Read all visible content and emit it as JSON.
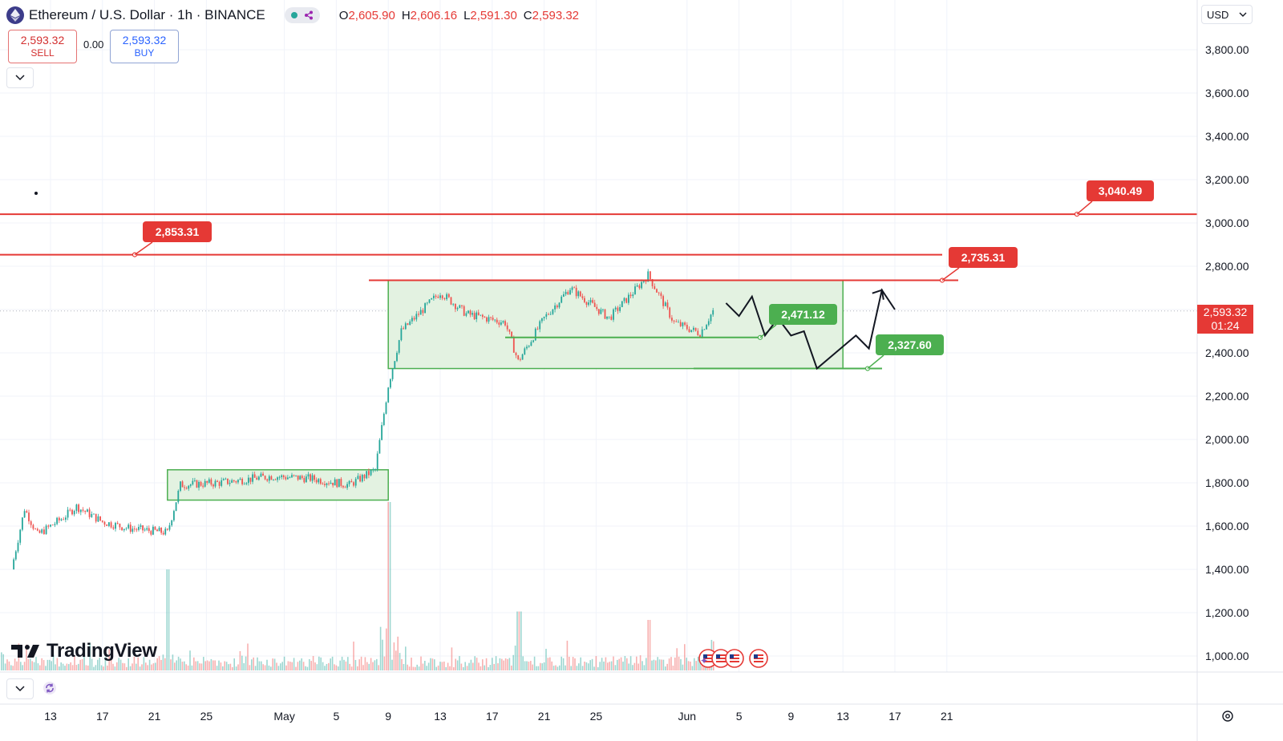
{
  "header": {
    "symbol_title": "Ethereum / U.S. Dollar · 1h · BINANCE",
    "ohlc": [
      {
        "k": "O",
        "v": "2,605.90"
      },
      {
        "k": "H",
        "v": "2,606.16"
      },
      {
        "k": "L",
        "v": "2,591.30"
      },
      {
        "k": "C",
        "v": "2,593.32"
      }
    ]
  },
  "trade": {
    "sell_price": "2,593.32",
    "sell_label": "SELL",
    "spread": "0.00",
    "buy_price": "2,593.32",
    "buy_label": "BUY"
  },
  "currency": "USD",
  "logo_text": "TradingView",
  "current_price": {
    "price": "2,593.32",
    "countdown": "01:24"
  },
  "callouts": {
    "r3040": "3,040.49",
    "r2853": "2,853.31",
    "r2735": "2,735.31",
    "s2471": "2,471.12",
    "s2327": "2,327.60"
  },
  "colors": {
    "up": "#26a69a",
    "down": "#ef5350",
    "resistance": "#e53935",
    "support": "#4caf50",
    "zone_fill": "#e3f2e1"
  },
  "icons": [
    "ethereum-icon",
    "chevron-down-icon",
    "refresh-icon",
    "gear-icon",
    "us-flag-icon"
  ],
  "chart_data": {
    "type": "candlestick",
    "symbol": "Ethereum / U.S. Dollar",
    "interval": "1h",
    "exchange": "BINANCE",
    "y_ticks": [
      "3,800.00",
      "3,600.00",
      "3,400.00",
      "3,200.00",
      "3,000.00",
      "2,800.00",
      "2,600.00",
      "2,400.00",
      "2,200.00",
      "2,000.00",
      "1,800.00",
      "1,600.00",
      "1,400.00",
      "1,200.00",
      "1,000.00"
    ],
    "x_ticks": [
      "13",
      "17",
      "21",
      "25",
      "May",
      "5",
      "9",
      "13",
      "17",
      "21",
      "25",
      "Jun",
      "5",
      "9",
      "13",
      "17",
      "21"
    ],
    "ylim": [
      960,
      3920
    ],
    "price_path": [
      {
        "date": "Apr 10",
        "price": 1400
      },
      {
        "date": "Apr 11",
        "price": 1680
      },
      {
        "date": "Apr 12",
        "price": 1560
      },
      {
        "date": "Apr 14",
        "price": 1640
      },
      {
        "date": "Apr 15",
        "price": 1690
      },
      {
        "date": "Apr 17",
        "price": 1620
      },
      {
        "date": "Apr 19",
        "price": 1590
      },
      {
        "date": "Apr 22",
        "price": 1570
      },
      {
        "date": "Apr 23",
        "price": 1790
      },
      {
        "date": "Apr 26",
        "price": 1800
      },
      {
        "date": "Apr 30",
        "price": 1830
      },
      {
        "date": "May 3",
        "price": 1820
      },
      {
        "date": "May 6",
        "price": 1790
      },
      {
        "date": "May 8",
        "price": 1860
      },
      {
        "date": "May 9",
        "price": 2250
      },
      {
        "date": "May 10",
        "price": 2500
      },
      {
        "date": "May 11",
        "price": 2560
      },
      {
        "date": "May 13",
        "price": 2680
      },
      {
        "date": "May 15",
        "price": 2580
      },
      {
        "date": "May 18",
        "price": 2540
      },
      {
        "date": "May 19",
        "price": 2360
      },
      {
        "date": "May 21",
        "price": 2560
      },
      {
        "date": "May 23",
        "price": 2700
      },
      {
        "date": "May 26",
        "price": 2560
      },
      {
        "date": "May 28",
        "price": 2690
      },
      {
        "date": "May 29",
        "price": 2760
      },
      {
        "date": "May 31",
        "price": 2540
      },
      {
        "date": "Jun 2",
        "price": 2490
      },
      {
        "date": "Jun 3",
        "price": 2593.32
      }
    ],
    "volume_spikes": [
      {
        "date": "Apr 22",
        "relative": 0.6
      },
      {
        "date": "May 9",
        "relative": 1.0
      },
      {
        "date": "May 19",
        "relative": 0.35
      },
      {
        "date": "May 29",
        "relative": 0.3
      }
    ],
    "horizontal_levels": [
      {
        "price": 3040.49,
        "color": "red",
        "span": "full"
      },
      {
        "price": 2853.31,
        "color": "red",
        "span": "partial"
      },
      {
        "price": 2735.31,
        "color": "red",
        "span": "partial"
      },
      {
        "price": 2471.12,
        "color": "green",
        "span": "partial"
      },
      {
        "price": 2327.6,
        "color": "green",
        "span": "partial"
      }
    ],
    "zones": [
      {
        "from": "Apr 22",
        "to": "May 9",
        "low": 1720,
        "high": 1860
      },
      {
        "from": "May 9",
        "to": "Jun 13",
        "low": 2327.6,
        "high": 2735.31
      }
    ],
    "projection_path": [
      {
        "date": "Jun 4",
        "price": 2630
      },
      {
        "date": "Jun 5",
        "price": 2570
      },
      {
        "date": "Jun 6",
        "price": 2660
      },
      {
        "date": "Jun 7",
        "price": 2480
      },
      {
        "date": "Jun 8",
        "price": 2560
      },
      {
        "date": "Jun 9",
        "price": 2480
      },
      {
        "date": "Jun 10",
        "price": 2500
      },
      {
        "date": "Jun 11",
        "price": 2327.6
      },
      {
        "date": "Jun 14",
        "price": 2480
      },
      {
        "date": "Jun 15",
        "price": 2420
      },
      {
        "date": "Jun 16",
        "price": 2690
      },
      {
        "date": "Jun 17",
        "price": 2600
      }
    ]
  }
}
